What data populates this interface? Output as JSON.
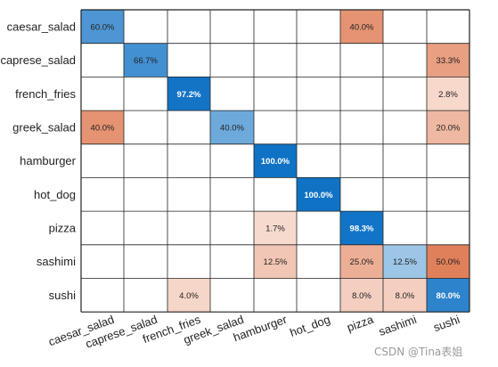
{
  "chart_data": {
    "type": "heatmap",
    "rows": [
      "caesar_salad",
      "caprese_salad",
      "french_fries",
      "greek_salad",
      "hamburger",
      "hot_dog",
      "pizza",
      "sashimi",
      "sushi"
    ],
    "columns": [
      "caesar_salad",
      "caprese_salad",
      "french_fries",
      "greek_salad",
      "hamburger",
      "hot_dog",
      "pizza",
      "sashimi",
      "sushi"
    ],
    "value_suffix": "%",
    "cells": [
      {
        "row": 0,
        "col": 0,
        "value": 60.0
      },
      {
        "row": 0,
        "col": 6,
        "value": 40.0
      },
      {
        "row": 1,
        "col": 1,
        "value": 66.7
      },
      {
        "row": 1,
        "col": 8,
        "value": 33.3
      },
      {
        "row": 2,
        "col": 2,
        "value": 97.2
      },
      {
        "row": 2,
        "col": 8,
        "value": 2.8
      },
      {
        "row": 3,
        "col": 0,
        "value": 40.0
      },
      {
        "row": 3,
        "col": 3,
        "value": 40.0
      },
      {
        "row": 3,
        "col": 8,
        "value": 20.0
      },
      {
        "row": 4,
        "col": 4,
        "value": 100.0
      },
      {
        "row": 5,
        "col": 5,
        "value": 100.0
      },
      {
        "row": 6,
        "col": 4,
        "value": 1.7
      },
      {
        "row": 6,
        "col": 6,
        "value": 98.3
      },
      {
        "row": 7,
        "col": 4,
        "value": 12.5
      },
      {
        "row": 7,
        "col": 6,
        "value": 25.0
      },
      {
        "row": 7,
        "col": 7,
        "value": 12.5
      },
      {
        "row": 7,
        "col": 8,
        "value": 50.0
      },
      {
        "row": 8,
        "col": 2,
        "value": 4.0
      },
      {
        "row": 8,
        "col": 6,
        "value": 8.0
      },
      {
        "row": 8,
        "col": 7,
        "value": 8.0
      },
      {
        "row": 8,
        "col": 8,
        "value": 80.0
      }
    ],
    "colors": {
      "diagonal_high": "#0f72c5",
      "diagonal_low": "#b6d4ec",
      "offdiag_high": "#e0805a",
      "offdiag_low": "#f8ddd2",
      "grid": "#222222"
    },
    "grid": true
  },
  "watermark": "CSDN @Tina表姐"
}
